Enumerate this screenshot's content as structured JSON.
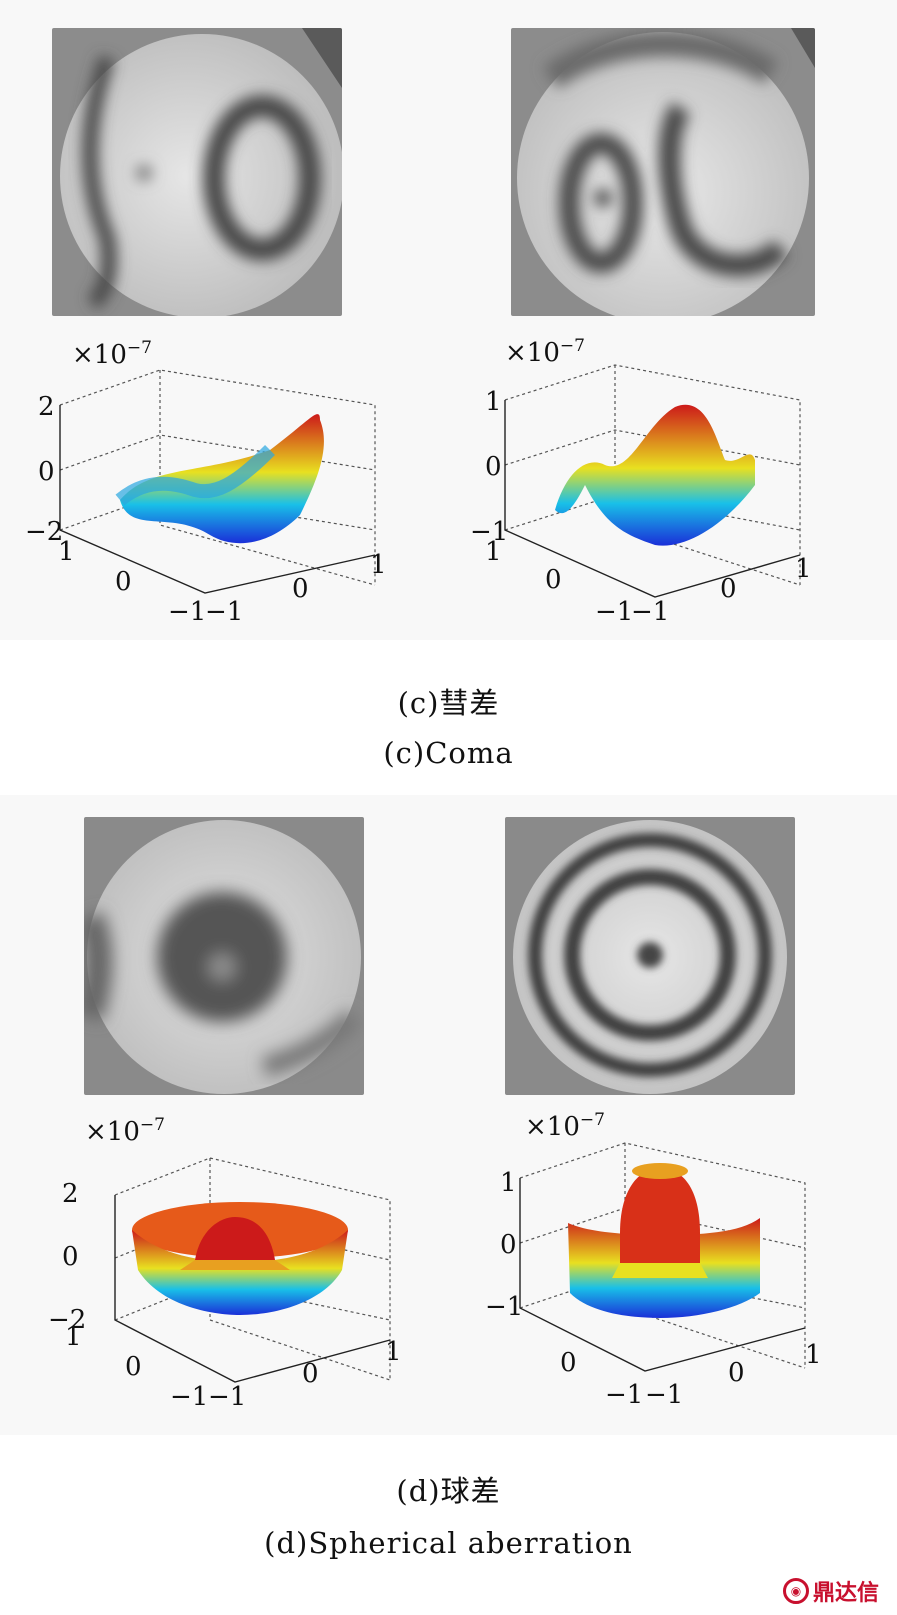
{
  "figure": {
    "panels": [
      {
        "id": "c",
        "caption_cn": "(c)彗差",
        "caption_en": "(c)Coma",
        "plots": [
          {
            "scale_label": "×10",
            "scale_exp": "−7",
            "z_ticks": [
              "2",
              "0",
              "−2"
            ],
            "y_ticks": [
              "1",
              "0",
              "−1"
            ],
            "x_ticks": [
              "−1",
              "0",
              "1"
            ]
          },
          {
            "scale_label": "×10",
            "scale_exp": "−7",
            "z_ticks": [
              "1",
              "0",
              "−1"
            ],
            "y_ticks": [
              "1",
              "0",
              "−1"
            ],
            "x_ticks": [
              "−1",
              "0",
              "1"
            ]
          }
        ]
      },
      {
        "id": "d",
        "caption_cn": "(d)球差",
        "caption_en": "(d)Spherical aberration",
        "plots": [
          {
            "scale_label": "×10",
            "scale_exp": "−7",
            "z_ticks": [
              "2",
              "0",
              "−2"
            ],
            "y_ticks": [
              "1",
              "0",
              "−1"
            ],
            "x_ticks": [
              "−1",
              "0",
              "1"
            ]
          },
          {
            "scale_label": "×10",
            "scale_exp": "−7",
            "z_ticks": [
              "1",
              "0",
              "−1"
            ],
            "y_ticks": [
              "1",
              "0",
              "−1"
            ],
            "x_ticks": [
              "−1",
              "0",
              "1"
            ]
          }
        ]
      }
    ]
  },
  "watermark": {
    "text": "鼎达信"
  },
  "colors": {
    "surface_high": "#cc1a1a",
    "surface_mid": "#e8e020",
    "surface_low": "#1a2fd8",
    "fringe_bg": "#8a8a8a"
  }
}
